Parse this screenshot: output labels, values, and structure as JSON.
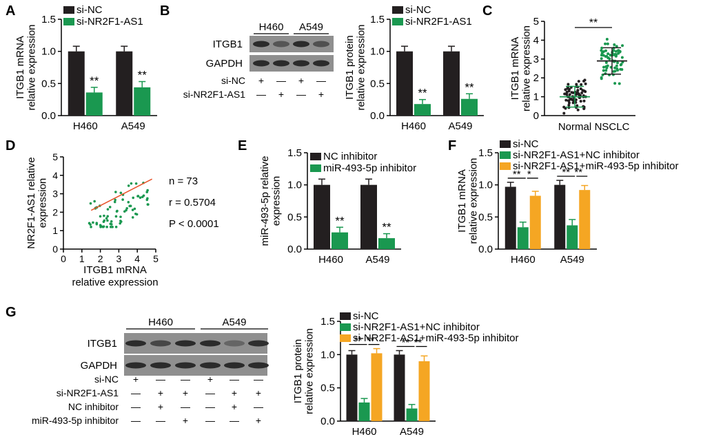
{
  "colors": {
    "black": "#231f20",
    "green": "#1a9850",
    "orange": "#f5a623",
    "red": "#e8542b",
    "blot_bg": "#8f8f8f",
    "band": "#262626"
  },
  "icons": {
    "error_cap": "error-bar-cap",
    "scatter_dot": "dot-marker"
  },
  "chart_data": [
    {
      "panel": "A",
      "type": "bar",
      "ylabel": "ITGB1 mRNA\nrelative expression",
      "ylim": [
        0,
        1.5
      ],
      "yticks": [
        "0.0",
        "0.5",
        "1.0",
        "1.5"
      ],
      "categories": [
        "H460",
        "A549"
      ],
      "series": [
        {
          "name": "si-NC",
          "color": "black",
          "values": [
            1.0,
            1.0
          ],
          "err": [
            0.08,
            0.08
          ]
        },
        {
          "name": "si-NR2F1-AS1",
          "color": "green",
          "values": [
            0.36,
            0.44
          ],
          "err": [
            0.08,
            0.09
          ]
        }
      ],
      "annotations": [
        "**",
        "**"
      ]
    },
    {
      "panel": "B",
      "type": "bar",
      "ylabel": "ITGB1 protein\nrelative expression",
      "ylim": [
        0,
        1.5
      ],
      "yticks": [
        "0.0",
        "0.5",
        "1.0",
        "1.5"
      ],
      "categories": [
        "H460",
        "A549"
      ],
      "series": [
        {
          "name": "si-NC",
          "color": "black",
          "values": [
            1.0,
            1.0
          ],
          "err": [
            0.08,
            0.08
          ]
        },
        {
          "name": "si-NR2F1-AS1",
          "color": "green",
          "values": [
            0.18,
            0.26
          ],
          "err": [
            0.07,
            0.08
          ]
        }
      ],
      "annotations": [
        "**",
        "**"
      ]
    },
    {
      "panel": "C",
      "type": "scatter",
      "ylabel": "ITGB1 mRNA\nrelative expression",
      "ylim": [
        0,
        5
      ],
      "yticks": [
        "0",
        "1",
        "2",
        "3",
        "4",
        "5"
      ],
      "categories": [
        "Normal",
        "NSCLC"
      ],
      "groups": [
        {
          "name": "Normal",
          "color": "black",
          "mean": 1.0,
          "sd": 0.55,
          "n": 73
        },
        {
          "name": "NSCLC",
          "color": "green",
          "mean": 2.9,
          "sd": 0.7,
          "n": 73
        }
      ],
      "annotation": "**"
    },
    {
      "panel": "D",
      "type": "scatter",
      "xlabel": "ITGB1 mRNA\nrelative expression",
      "ylabel": "NR2F1-AS1 relative\nexpression",
      "xlim": [
        0,
        5
      ],
      "ylim": [
        0,
        5
      ],
      "xticks": [
        "0",
        "1",
        "2",
        "3",
        "4",
        "5"
      ],
      "yticks": [
        "0",
        "1",
        "2",
        "3",
        "4",
        "5"
      ],
      "fit_line": {
        "x": [
          1.5,
          4.8
        ],
        "y": [
          2.1,
          3.8
        ]
      },
      "stats": [
        "n = 73",
        "r = 0.5704",
        "P < 0.0001"
      ]
    },
    {
      "panel": "E",
      "type": "bar",
      "ylabel": "miR-493-5p relative\nexpression",
      "ylim": [
        0,
        1.5
      ],
      "yticks": [
        "0.0",
        "0.5",
        "1.0",
        "1.5"
      ],
      "categories": [
        "H460",
        "A549"
      ],
      "series": [
        {
          "name": "NC inhibitor",
          "color": "black",
          "values": [
            1.0,
            1.0
          ],
          "err": [
            0.09,
            0.09
          ]
        },
        {
          "name": "miR-493-5p inhibitor",
          "color": "green",
          "values": [
            0.26,
            0.17
          ],
          "err": [
            0.08,
            0.07
          ]
        }
      ],
      "annotations": [
        "**",
        "**"
      ]
    },
    {
      "panel": "F",
      "type": "bar",
      "ylabel": "ITGB1 mRNA\nrelative expression",
      "ylim": [
        0,
        1.5
      ],
      "yticks": [
        "0.0",
        "0.5",
        "1.0",
        "1.5"
      ],
      "categories": [
        "H460",
        "A549"
      ],
      "series": [
        {
          "name": "si-NC",
          "color": "black",
          "values": [
            0.97,
            1.0
          ],
          "err": [
            0.07,
            0.07
          ]
        },
        {
          "name": "si-NR2F1-AS1+NC inhibitor",
          "color": "green",
          "values": [
            0.34,
            0.37
          ],
          "err": [
            0.08,
            0.09
          ]
        },
        {
          "name": "si-NR2F1-AS1+miR-493-5p inhibitor",
          "color": "orange",
          "values": [
            0.83,
            0.92
          ],
          "err": [
            0.07,
            0.07
          ]
        }
      ],
      "brackets": [
        [
          "**",
          "*"
        ],
        [
          "**",
          "**"
        ]
      ]
    },
    {
      "panel": "G",
      "type": "bar",
      "ylabel": "ITGB1 protein\nrelative expression",
      "ylim": [
        0,
        1.5
      ],
      "yticks": [
        "0.0",
        "0.5",
        "1.0",
        "1.5"
      ],
      "categories": [
        "H460",
        "A549"
      ],
      "series": [
        {
          "name": "si-NC",
          "color": "black",
          "values": [
            1.0,
            1.0
          ],
          "err": [
            0.06,
            0.06
          ]
        },
        {
          "name": "si-NR2F1-AS1+NC inhibitor",
          "color": "green",
          "values": [
            0.28,
            0.19
          ],
          "err": [
            0.06,
            0.06
          ]
        },
        {
          "name": "si-NR2F1-AS1+miR-493-5p inhibitor",
          "color": "orange",
          "values": [
            1.02,
            0.9
          ],
          "err": [
            0.07,
            0.08
          ]
        }
      ],
      "brackets": [
        [
          "**",
          "**"
        ],
        [
          "**",
          "**"
        ]
      ]
    }
  ],
  "blots": {
    "B": {
      "headers": [
        "H460",
        "A549"
      ],
      "bands": [
        "ITGB1",
        "GAPDH"
      ],
      "rows": [
        {
          "label": "si-NC",
          "marks": [
            "+",
            "—",
            "+",
            "—"
          ]
        },
        {
          "label": "si-NR2F1-AS1",
          "marks": [
            "—",
            "+",
            "—",
            "+"
          ]
        }
      ]
    },
    "G": {
      "headers": [
        "H460",
        "A549"
      ],
      "bands": [
        "ITGB1",
        "GAPDH"
      ],
      "rows": [
        {
          "label": "si-NC",
          "marks": [
            "+",
            "—",
            "—",
            "+",
            "—",
            "—"
          ]
        },
        {
          "label": "si-NR2F1-AS1",
          "marks": [
            "—",
            "+",
            "+",
            "—",
            "+",
            "+"
          ]
        },
        {
          "label": "NC inhibitor",
          "marks": [
            "—",
            "+",
            "—",
            "—",
            "+",
            "—"
          ]
        },
        {
          "label": "miR-493-5p inhibitor",
          "marks": [
            "—",
            "—",
            "+",
            "—",
            "—",
            "+"
          ]
        }
      ]
    }
  }
}
